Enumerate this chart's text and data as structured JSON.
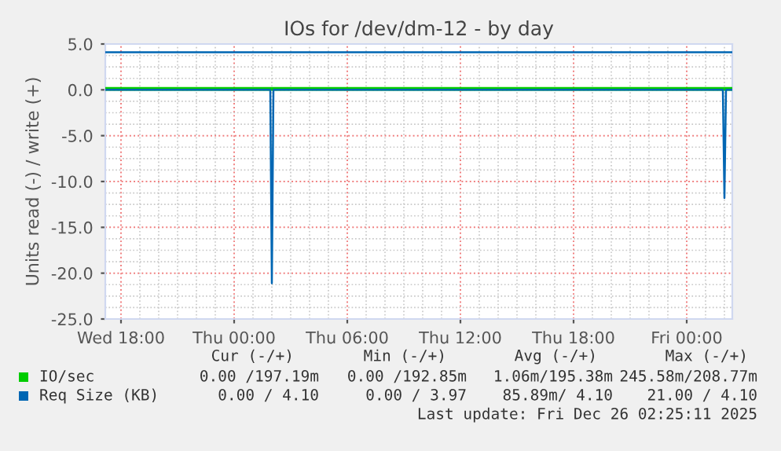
{
  "chart_data": {
    "type": "line",
    "title": "IOs for /dev/dm-12 - by day",
    "ylabel": "Units read (-) / write (+)",
    "xlim": [
      "2025-12-24T17:10",
      "2025-12-26T02:25"
    ],
    "xticks": [
      {
        "value": "2025-12-24T18:00",
        "label": "Wed 18:00"
      },
      {
        "value": "2025-12-25T00:00",
        "label": "Thu 00:00"
      },
      {
        "value": "2025-12-25T06:00",
        "label": "Thu 06:00"
      },
      {
        "value": "2025-12-25T12:00",
        "label": "Thu 12:00"
      },
      {
        "value": "2025-12-25T18:00",
        "label": "Thu 18:00"
      },
      {
        "value": "2025-12-26T00:00",
        "label": "Fri 00:00"
      }
    ],
    "ylim": [
      -25,
      5
    ],
    "yticks": [
      {
        "value": -25,
        "label": "-25.0"
      },
      {
        "value": -20,
        "label": "-20.0"
      },
      {
        "value": -15,
        "label": "-15.0"
      },
      {
        "value": -10,
        "label": "-10.0"
      },
      {
        "value": -5,
        "label": "-5.0"
      },
      {
        "value": 0,
        "label": "0.0"
      },
      {
        "value": 5,
        "label": "5.0"
      }
    ],
    "grid": true,
    "legend": "bottom",
    "series": [
      {
        "name": "IO/sec",
        "color": "#00cc00",
        "x": [
          "2025-12-24T17:10",
          "2025-12-26T02:25"
        ],
        "values": [
          0.2,
          0.2
        ]
      },
      {
        "color": "#00cc00",
        "x": [
          "2025-12-24T17:10",
          "2025-12-26T02:25"
        ],
        "values": [
          0,
          0
        ]
      },
      {
        "name": "Req Size (KB)",
        "color": "#0066b3",
        "x": [
          "2025-12-24T17:10",
          "2025-12-26T02:25"
        ],
        "values": [
          4.1,
          4.1
        ]
      },
      {
        "color": "#0066b3",
        "x": [
          "2025-12-24T17:10",
          "2025-12-25T01:55",
          "2025-12-25T02:00",
          "2025-12-25T02:05",
          "2025-12-26T01:55",
          "2025-12-26T02:00",
          "2025-12-26T02:05",
          "2025-12-26T02:25"
        ],
        "values": [
          0,
          0,
          -21.1,
          0,
          0,
          -11.8,
          0,
          0
        ]
      }
    ],
    "annotations": [
      "Cur (-/+)",
      "Min (-/+)",
      "Avg (-/+)",
      "Max (-/+)",
      "0.00 /197.19m",
      "0.00 /192.85m",
      "1.06m/195.38m",
      "245.58m/208.77m",
      "0.00 / 4.10",
      "0.00 / 3.97",
      "85.89m/ 4.10",
      "21.00 / 4.10",
      "Last update: Fri Dec 26 02:25:11 2025"
    ]
  }
}
